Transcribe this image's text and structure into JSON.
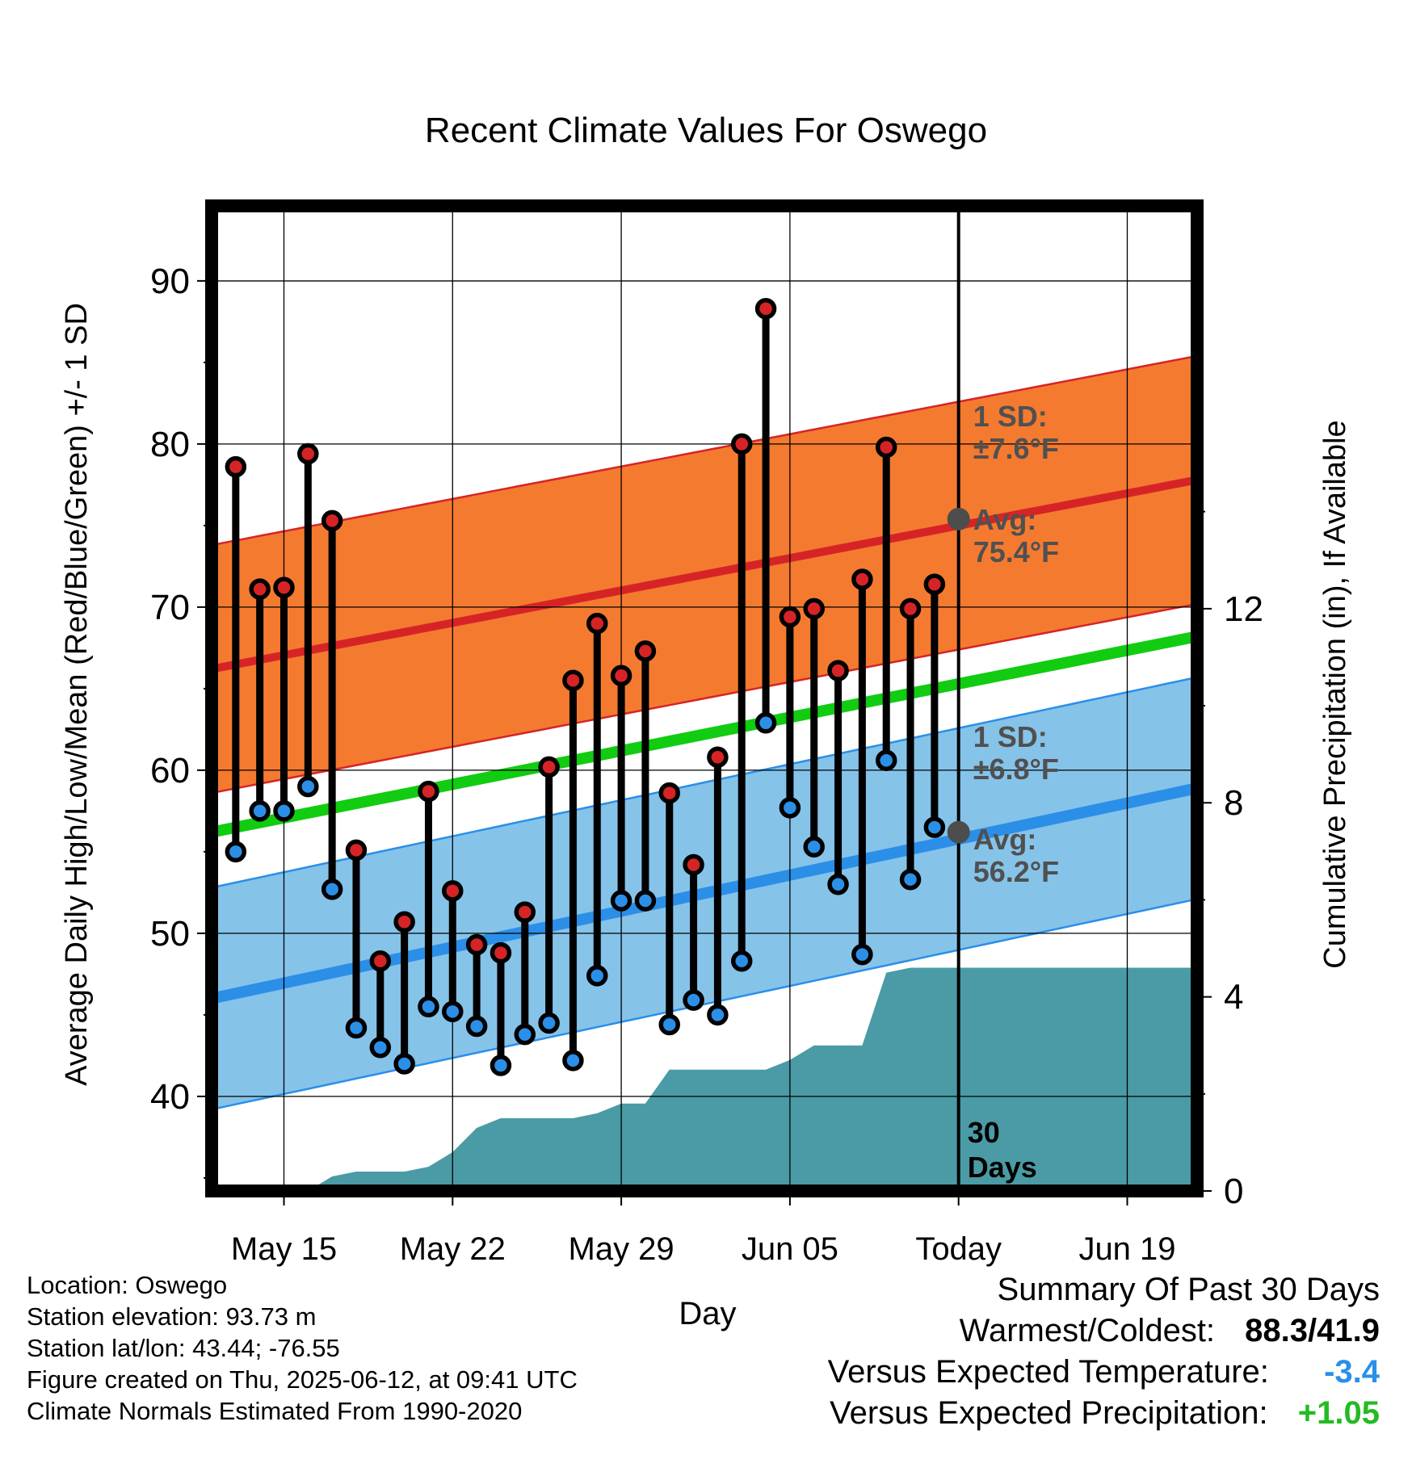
{
  "chart_data": {
    "type": "line",
    "title": "Recent Climate Values For Oswego",
    "xlabel": "Day",
    "ylabel": "Average Daily High/Low/Mean (Red/Blue/Green) +/- 1 SD",
    "y2label": "Cumulative Precipitation (in), If Available",
    "x_ticks": [
      "May 15",
      "May 22",
      "May 29",
      "Jun 05",
      "Today",
      "Jun 19"
    ],
    "x_tick_days": [
      16,
      23,
      30,
      37,
      44,
      51
    ],
    "xlim": [
      13.0,
      53.9
    ],
    "ylim": [
      34.2,
      94.6
    ],
    "y_ticks": [
      40,
      50,
      60,
      70,
      80,
      90
    ],
    "y2lim": [
      0,
      20.3
    ],
    "y2_ticks": [
      0,
      4,
      8,
      12
    ],
    "today_day": 44,
    "today_label": [
      "30",
      "Days"
    ],
    "colors": {
      "high": "#d62426",
      "low": "#2b8fe8",
      "mean": "#11cc11",
      "high_band": "#f47a30",
      "low_band": "#86c3e9",
      "precip": "#4a9ba5",
      "avg_marker": "#4d4d4d",
      "annotation": "#505050"
    },
    "normals": {
      "high": {
        "start": 66.2,
        "end": 77.8,
        "sd": 7.6
      },
      "low": {
        "start": 46.0,
        "end": 58.9,
        "sd": 6.8
      },
      "mean": {
        "start": 56.2,
        "end": 68.2
      }
    },
    "annotations": {
      "high_sd": [
        "1 SD:",
        "±7.6°F"
      ],
      "high_avg": [
        "Avg:",
        "75.4°F"
      ],
      "high_avg_value": 75.4,
      "low_sd": [
        "1 SD:",
        "±6.8°F"
      ],
      "low_avg": [
        "Avg:",
        "56.2°F"
      ],
      "low_avg_value": 56.2
    },
    "days": [
      14,
      15,
      16,
      17,
      18,
      19,
      20,
      21,
      22,
      23,
      24,
      25,
      26,
      27,
      28,
      29,
      30,
      31,
      32,
      33,
      34,
      35,
      36,
      37,
      38,
      39,
      40,
      41,
      42,
      43
    ],
    "series": [
      {
        "name": "High",
        "values": [
          78.6,
          71.1,
          71.2,
          79.4,
          75.3,
          55.1,
          48.3,
          50.7,
          58.7,
          52.6,
          49.3,
          48.8,
          51.3,
          60.2,
          65.5,
          69.0,
          65.8,
          67.3,
          58.6,
          54.2,
          60.8,
          80.0,
          88.3,
          69.4,
          69.9,
          66.1,
          71.7,
          79.8,
          69.9,
          71.4
        ]
      },
      {
        "name": "Low",
        "values": [
          55.0,
          57.5,
          57.5,
          59.0,
          52.7,
          44.2,
          43.0,
          42.0,
          45.5,
          45.2,
          44.3,
          41.9,
          43.8,
          44.5,
          42.2,
          47.4,
          52.0,
          52.0,
          44.4,
          45.9,
          45.0,
          48.3,
          62.9,
          57.7,
          55.3,
          53.0,
          48.7,
          60.6,
          53.3,
          56.5
        ]
      }
    ],
    "precip": {
      "x": [
        13.0,
        14.0,
        15.0,
        16.0,
        17.0,
        18.0,
        19.0,
        20.0,
        21.0,
        22.0,
        23.0,
        24.0,
        25.0,
        26.0,
        27.0,
        28.0,
        29.0,
        30.0,
        31.0,
        32.0,
        33.0,
        34.0,
        35.0,
        36.0,
        37.0,
        38.0,
        39.0,
        40.0,
        41.0,
        42.0,
        43.0,
        44.0,
        53.9
      ],
      "values": [
        0,
        0,
        0,
        0,
        0,
        0.3,
        0.4,
        0.4,
        0.4,
        0.5,
        0.8,
        1.3,
        1.5,
        1.5,
        1.5,
        1.5,
        1.6,
        1.8,
        1.8,
        2.5,
        2.5,
        2.5,
        2.5,
        2.5,
        2.7,
        3.0,
        3.0,
        3.0,
        4.5,
        4.6,
        4.6,
        4.6,
        4.6
      ]
    }
  },
  "footer": {
    "location": "Location: Oswego",
    "elevation": "Station elevation: 93.73 m",
    "latlon": "Station lat/lon: 43.44; -76.55",
    "created": "Figure created on Thu, 2025-06-12, at 09:41 UTC",
    "normals": "Climate Normals Estimated From 1990-2020"
  },
  "summary": {
    "title": "Summary Of Past 30 Days",
    "warm_cold_label": "Warmest/Coldest:",
    "warm_cold_value": "88.3/41.9",
    "temp_label": "Versus Expected Temperature:",
    "temp_value": "-3.4",
    "precip_label": "Versus Expected Precipitation:",
    "precip_value": "+1.05"
  }
}
